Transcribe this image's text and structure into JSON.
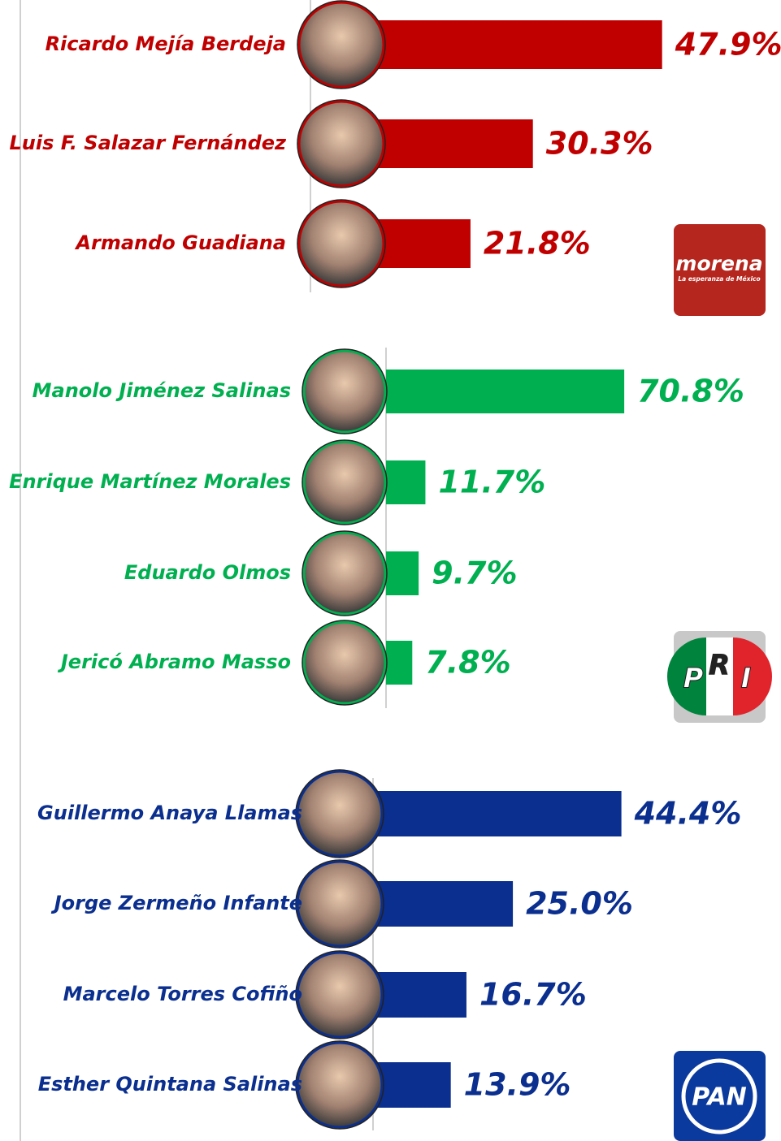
{
  "chart_data": [
    {
      "type": "bar",
      "color": "#c00000",
      "xlim": [
        0,
        60
      ],
      "categories": [
        "Ricardo Mejía Berdeja",
        "Luis F. Salazar Fernández",
        "Armando Guadiana"
      ],
      "values": [
        47.9,
        30.3,
        21.8
      ],
      "value_labels": [
        "47.9%",
        "30.3%",
        "21.8%"
      ],
      "logo": {
        "text": "morena",
        "subtitle": "La esperanza de México"
      }
    },
    {
      "type": "bar",
      "color": "#00b050",
      "xlim": [
        0,
        100
      ],
      "categories": [
        "Manolo Jiménez Salinas",
        "Enrique Martínez Morales",
        "Eduardo Olmos",
        "Jericó Abramo Masso"
      ],
      "values": [
        70.8,
        11.7,
        9.7,
        7.8
      ],
      "value_labels": [
        "70.8%",
        "11.7%",
        "9.7%",
        "7.8%"
      ],
      "logo": {
        "letters": [
          "P",
          "R",
          "I"
        ]
      }
    },
    {
      "type": "bar",
      "color": "#0b2f8f",
      "xlim": [
        0,
        60
      ],
      "categories": [
        "Guillermo Anaya Llamas",
        "Jorge Zermeño Infante",
        "Marcelo Torres Cofiño",
        "Esther Quintana Salinas"
      ],
      "values": [
        44.4,
        25.0,
        16.7,
        13.9
      ],
      "value_labels": [
        "44.4%",
        "25.0%",
        "16.7%",
        "13.9%"
      ],
      "logo": {
        "text": "PAN"
      }
    }
  ]
}
